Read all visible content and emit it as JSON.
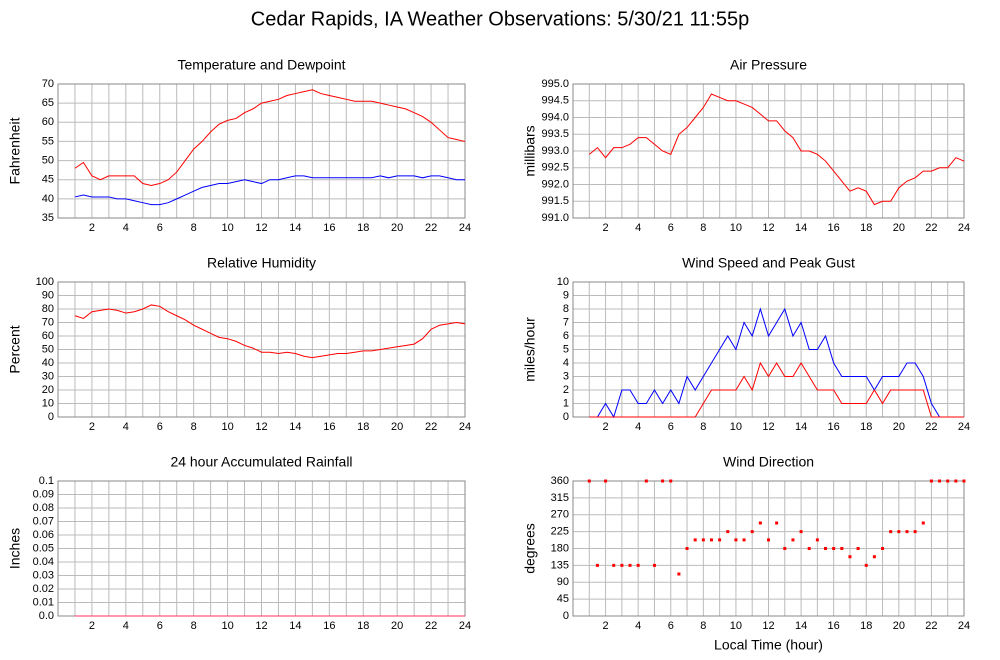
{
  "title": "Cedar Rapids, IA Weather Observations: 5/30/21 11:55p",
  "chart_data": [
    {
      "type": "line",
      "title": "Temperature and Dewpoint",
      "ylabel": "Fahrenheit",
      "x": [
        1,
        1.5,
        2,
        2.5,
        3,
        3.5,
        4,
        4.5,
        5,
        5.5,
        6,
        6.5,
        7,
        7.5,
        8,
        8.5,
        9,
        9.5,
        10,
        10.5,
        11,
        11.5,
        12,
        12.5,
        13,
        13.5,
        14,
        14.5,
        15,
        15.5,
        16,
        16.5,
        17,
        17.5,
        18,
        18.5,
        19,
        19.5,
        20,
        20.5,
        21,
        21.5,
        22,
        22.5,
        23,
        23.5,
        24
      ],
      "series": [
        {
          "color": "#ff0000",
          "values": [
            48,
            49.5,
            46,
            45,
            46,
            46,
            46,
            46,
            44,
            43.5,
            44,
            45,
            47,
            50,
            53,
            55,
            57.5,
            59.5,
            60.5,
            61,
            62.5,
            63.5,
            65,
            65.5,
            66,
            67,
            67.5,
            68,
            68.5,
            67.5,
            67,
            66.5,
            66,
            65.5,
            65.5,
            65.5,
            65,
            64.5,
            64,
            63.5,
            62.5,
            61.5,
            60,
            58,
            56,
            55.5,
            55
          ]
        },
        {
          "color": "#0000ff",
          "values": [
            40.5,
            41,
            40.5,
            40.5,
            40.5,
            40,
            40,
            39.5,
            39,
            38.5,
            38.5,
            39,
            40,
            41,
            42,
            43,
            43.5,
            44,
            44,
            44.5,
            45,
            44.5,
            44,
            45,
            45,
            45.5,
            46,
            46,
            45.5,
            45.5,
            45.5,
            45.5,
            45.5,
            45.5,
            45.5,
            45.5,
            46,
            45.5,
            46,
            46,
            46,
            45.5,
            46,
            46,
            45.5,
            45,
            45
          ]
        }
      ],
      "xlim": [
        0,
        24
      ],
      "xticks": [
        2,
        4,
        6,
        8,
        10,
        12,
        14,
        16,
        18,
        20,
        22,
        24
      ],
      "ylim": [
        35,
        70
      ],
      "yticks": [
        35,
        40,
        45,
        50,
        55,
        60,
        65,
        70
      ],
      "grid": true
    },
    {
      "type": "line",
      "title": "Air Pressure",
      "ylabel": "millibars",
      "x": [
        1,
        1.5,
        2,
        2.5,
        3,
        3.5,
        4,
        4.5,
        5,
        5.5,
        6,
        6.5,
        7,
        7.5,
        8,
        8.5,
        9,
        9.5,
        10,
        10.5,
        11,
        11.5,
        12,
        12.5,
        13,
        13.5,
        14,
        14.5,
        15,
        15.5,
        16,
        16.5,
        17,
        17.5,
        18,
        18.5,
        19,
        19.5,
        20,
        20.5,
        21,
        21.5,
        22,
        22.5,
        23,
        23.5,
        24
      ],
      "series": [
        {
          "color": "#ff0000",
          "values": [
            992.9,
            993.1,
            992.8,
            993.1,
            993.1,
            993.2,
            993.4,
            993.4,
            993.2,
            993.0,
            992.9,
            993.5,
            993.7,
            994.0,
            994.3,
            994.7,
            994.6,
            994.5,
            994.5,
            994.4,
            994.3,
            994.1,
            993.9,
            993.9,
            993.6,
            993.4,
            993.0,
            993.0,
            992.9,
            992.7,
            992.4,
            992.1,
            991.8,
            991.9,
            991.8,
            991.4,
            991.5,
            991.5,
            991.9,
            992.1,
            992.2,
            992.4,
            992.4,
            992.5,
            992.5,
            992.8,
            992.7
          ]
        }
      ],
      "xlim": [
        0,
        24
      ],
      "xticks": [
        2,
        4,
        6,
        8,
        10,
        12,
        14,
        16,
        18,
        20,
        22,
        24
      ],
      "ylim": [
        991,
        995
      ],
      "yticks": [
        {
          "value": 991,
          "label": "991.0"
        },
        991.5,
        {
          "value": 992,
          "label": "992.0"
        },
        992.5,
        {
          "value": 993,
          "label": "993.0"
        },
        993.5,
        {
          "value": 994,
          "label": "994.0"
        },
        994.5,
        {
          "value": 995,
          "label": "995.0"
        }
      ],
      "grid": true
    },
    {
      "type": "line",
      "title": "Relative Humidity",
      "ylabel": "Percent",
      "x": [
        1,
        1.5,
        2,
        2.5,
        3,
        3.5,
        4,
        4.5,
        5,
        5.5,
        6,
        6.5,
        7,
        7.5,
        8,
        8.5,
        9,
        9.5,
        10,
        10.5,
        11,
        11.5,
        12,
        12.5,
        13,
        13.5,
        14,
        14.5,
        15,
        15.5,
        16,
        16.5,
        17,
        17.5,
        18,
        18.5,
        19,
        19.5,
        20,
        20.5,
        21,
        21.5,
        22,
        22.5,
        23,
        23.5,
        24
      ],
      "series": [
        {
          "color": "#ff0000",
          "values": [
            75,
            73,
            78,
            79,
            80,
            79,
            77,
            78,
            80,
            83,
            82,
            78,
            75,
            72,
            68,
            65,
            62,
            59,
            58,
            56,
            53,
            51,
            48,
            48,
            47,
            48,
            47,
            45,
            44,
            45,
            46,
            47,
            47,
            48,
            49,
            49,
            50,
            51,
            52,
            53,
            54,
            58,
            65,
            68,
            69,
            70,
            69
          ]
        }
      ],
      "xlim": [
        0,
        24
      ],
      "xticks": [
        2,
        4,
        6,
        8,
        10,
        12,
        14,
        16,
        18,
        20,
        22,
        24
      ],
      "ylim": [
        0,
        100
      ],
      "yticks": [
        0,
        10,
        20,
        30,
        40,
        50,
        60,
        70,
        80,
        90,
        100
      ],
      "grid": true
    },
    {
      "type": "line",
      "title": "Wind Speed and Peak Gust",
      "ylabel": "miles/hour",
      "x": [
        1,
        1.5,
        2,
        2.5,
        3,
        3.5,
        4,
        4.5,
        5,
        5.5,
        6,
        6.5,
        7,
        7.5,
        8,
        8.5,
        9,
        9.5,
        10,
        10.5,
        11,
        11.5,
        12,
        12.5,
        13,
        13.5,
        14,
        14.5,
        15,
        15.5,
        16,
        16.5,
        17,
        17.5,
        18,
        18.5,
        19,
        19.5,
        20,
        20.5,
        21,
        21.5,
        22,
        22.5,
        23,
        23.5,
        24
      ],
      "series": [
        {
          "color": "#0000ff",
          "values": [
            0,
            0,
            1,
            0,
            2,
            2,
            1,
            1,
            2,
            1,
            2,
            1,
            3,
            2,
            3,
            4,
            5,
            6,
            5,
            7,
            6,
            8,
            6,
            7,
            8,
            6,
            7,
            5,
            5,
            6,
            4,
            3,
            3,
            3,
            3,
            2,
            3,
            3,
            3,
            4,
            4,
            3,
            1,
            0,
            0,
            0,
            0
          ]
        },
        {
          "color": "#ff0000",
          "values": [
            0,
            0,
            0,
            0,
            0,
            0,
            0,
            0,
            0,
            0,
            0,
            0,
            0,
            0,
            1,
            2,
            2,
            2,
            2,
            3,
            2,
            4,
            3,
            4,
            3,
            3,
            4,
            3,
            2,
            2,
            2,
            1,
            1,
            1,
            1,
            2,
            1,
            2,
            2,
            2,
            2,
            2,
            0,
            0,
            0,
            0,
            0
          ]
        }
      ],
      "xlim": [
        0,
        24
      ],
      "xticks": [
        2,
        4,
        6,
        8,
        10,
        12,
        14,
        16,
        18,
        20,
        22,
        24
      ],
      "ylim": [
        0,
        10
      ],
      "yticks": [
        0,
        1,
        2,
        3,
        4,
        5,
        6,
        7,
        8,
        9,
        10
      ],
      "grid": true
    },
    {
      "type": "line",
      "title": "24 hour Accumulated Rainfall",
      "ylabel": "Inches",
      "x": [
        1,
        24
      ],
      "series": [
        {
          "color": "#ff3366",
          "values": [
            0,
            0
          ]
        }
      ],
      "xlim": [
        0,
        24
      ],
      "xticks": [
        2,
        4,
        6,
        8,
        10,
        12,
        14,
        16,
        18,
        20,
        22,
        24
      ],
      "ylim": [
        0,
        0.1
      ],
      "yticks": [
        {
          "value": 0,
          "label": "0.0"
        },
        0.01,
        0.02,
        0.03,
        0.04,
        0.05,
        0.06,
        0.07,
        0.08,
        0.09,
        0.1
      ],
      "grid": true
    },
    {
      "type": "scatter",
      "title": "Wind Direction",
      "ylabel": "degrees",
      "xlabel": "Local Time (hour)",
      "x": [
        1,
        1.5,
        2,
        2.5,
        3,
        3.5,
        4,
        4.5,
        5,
        5.5,
        6,
        6.5,
        7,
        7.5,
        8,
        8.5,
        9,
        9.5,
        10,
        10.5,
        11,
        11.5,
        12,
        12.5,
        13,
        13.5,
        14,
        14.5,
        15,
        15.5,
        16,
        16.5,
        17,
        17.5,
        18,
        18.5,
        19,
        19.5,
        20,
        20.5,
        21,
        21.5,
        22,
        22.5,
        23,
        23.5,
        24
      ],
      "series": [
        {
          "color": "#ff0000",
          "values": [
            360,
            135,
            360,
            135,
            135,
            135,
            135,
            360,
            135,
            360,
            360,
            112,
            180,
            203,
            203,
            203,
            203,
            225,
            203,
            203,
            225,
            248,
            203,
            248,
            180,
            203,
            225,
            180,
            203,
            180,
            180,
            180,
            158,
            180,
            135,
            158,
            180,
            225,
            225,
            225,
            225,
            248,
            360,
            360,
            360,
            360,
            360
          ]
        }
      ],
      "xlim": [
        0,
        24
      ],
      "xticks": [
        2,
        4,
        6,
        8,
        10,
        12,
        14,
        16,
        18,
        20,
        22,
        24
      ],
      "ylim": [
        0,
        360
      ],
      "yticks": [
        0,
        45,
        90,
        135,
        180,
        225,
        270,
        315,
        360
      ],
      "grid": true
    }
  ]
}
